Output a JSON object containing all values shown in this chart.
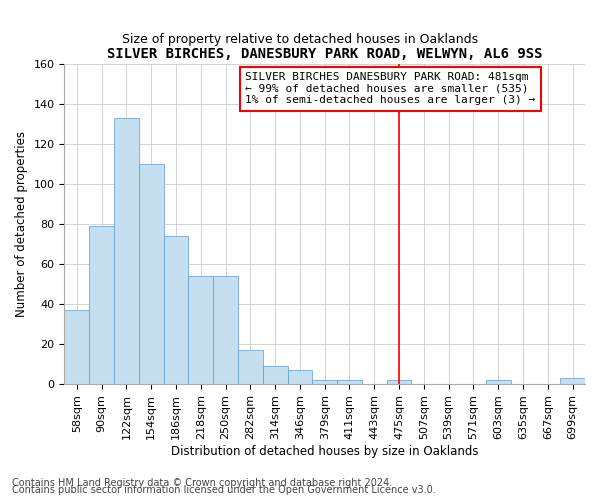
{
  "title": "SILVER BIRCHES, DANESBURY PARK ROAD, WELWYN, AL6 9SS",
  "subtitle": "Size of property relative to detached houses in Oaklands",
  "xlabel": "Distribution of detached houses by size in Oaklands",
  "ylabel": "Number of detached properties",
  "categories": [
    "58sqm",
    "90sqm",
    "122sqm",
    "154sqm",
    "186sqm",
    "218sqm",
    "250sqm",
    "282sqm",
    "314sqm",
    "346sqm",
    "379sqm",
    "411sqm",
    "443sqm",
    "475sqm",
    "507sqm",
    "539sqm",
    "571sqm",
    "603sqm",
    "635sqm",
    "667sqm",
    "699sqm"
  ],
  "values": [
    37,
    79,
    133,
    110,
    74,
    54,
    54,
    17,
    9,
    7,
    2,
    2,
    0,
    2,
    0,
    0,
    0,
    2,
    0,
    0,
    3
  ],
  "bar_color": "#c5dff0",
  "bar_edge_color": "#5b9bd5",
  "subject_line_index": 13,
  "annotation_text_line1": "SILVER BIRCHES DANESBURY PARK ROAD: 481sqm",
  "annotation_text_line2": "← 99% of detached houses are smaller (535)",
  "annotation_text_line3": "1% of semi-detached houses are larger (3) →",
  "ylim": [
    0,
    160
  ],
  "yticks": [
    0,
    20,
    40,
    60,
    80,
    100,
    120,
    140,
    160
  ],
  "footnote1": "Contains HM Land Registry data © Crown copyright and database right 2024.",
  "footnote2": "Contains public sector information licensed under the Open Government Licence v3.0.",
  "title_fontsize": 10,
  "subtitle_fontsize": 9,
  "label_fontsize": 8.5,
  "tick_fontsize": 8,
  "annotation_fontsize": 8,
  "footnote_fontsize": 7
}
